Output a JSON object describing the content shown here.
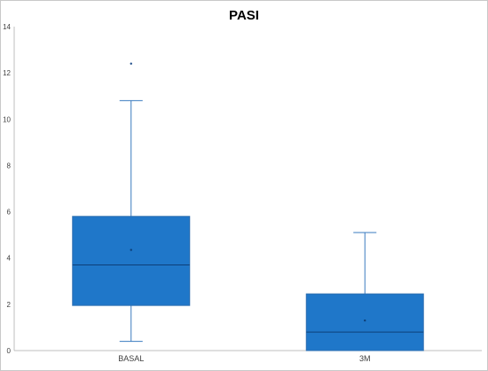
{
  "chart_data": {
    "type": "box",
    "title": "PASI",
    "xlabel": "",
    "ylabel": "",
    "ylim": [
      0,
      14
    ],
    "yticks": [
      "0",
      "2",
      "4",
      "6",
      "8",
      "10",
      "12",
      "14"
    ],
    "grid": false,
    "legend": "none",
    "categories": [
      "BASAL",
      "3M"
    ],
    "boxes": [
      {
        "category": "BASAL",
        "min": 0.4,
        "q1": 1.95,
        "median": 3.7,
        "q3": 5.8,
        "max": 10.8,
        "mean": 4.35,
        "outliers": [
          12.4
        ]
      },
      {
        "category": "3M",
        "min": 0.0,
        "q1": 0.0,
        "median": 0.8,
        "q3": 2.45,
        "max": 5.1,
        "mean": 1.3,
        "outliers": []
      }
    ],
    "colors": {
      "box_fill": "#1f77c9",
      "box_stroke": "#2e6fb0",
      "whisker": "#3a7bbf",
      "axis": "#bfbfbf"
    }
  }
}
